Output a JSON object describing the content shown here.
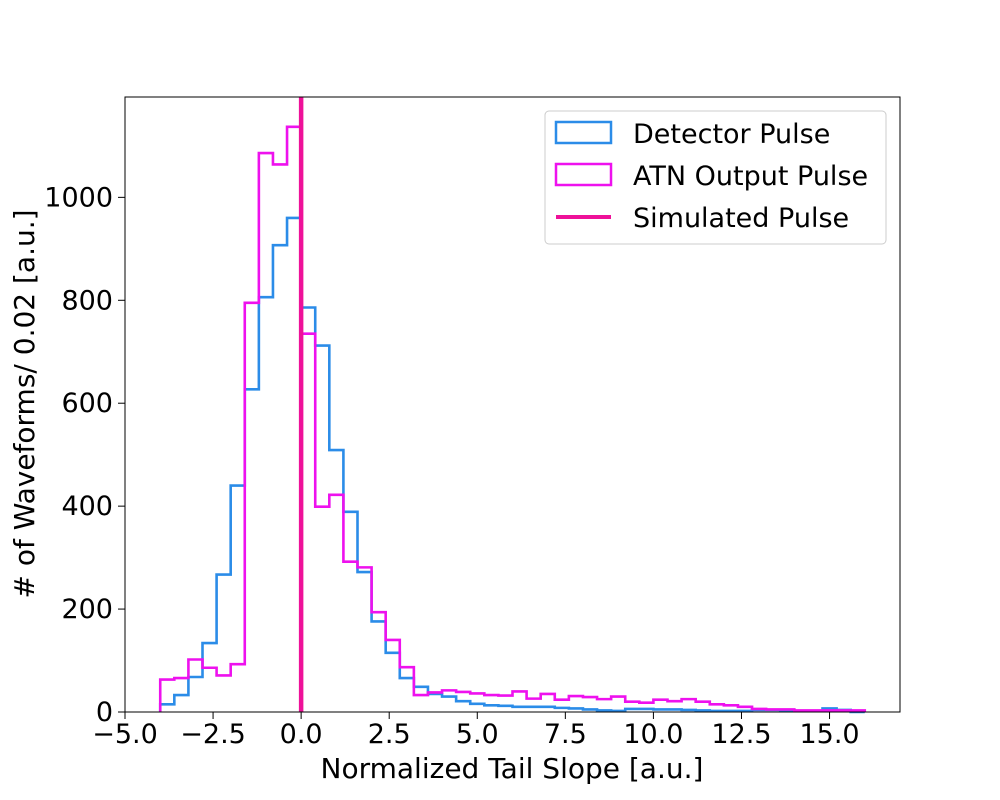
{
  "chart_data": {
    "type": "histogram",
    "title": "",
    "xlabel": "Normalized Tail Slope [a.u.]",
    "ylabel": "# of Waveforms/ 0.02 [a.u.]",
    "xlim": [
      -5.0,
      17.0
    ],
    "ylim": [
      0,
      1195
    ],
    "xticks": [
      -5.0,
      -2.5,
      0.0,
      2.5,
      5.0,
      7.5,
      10.0,
      12.5,
      15.0
    ],
    "xtick_labels": [
      "−5.0",
      "−2.5",
      "0.0",
      "2.5",
      "5.0",
      "7.5",
      "10.0",
      "12.5",
      "15.0"
    ],
    "yticks": [
      0,
      200,
      400,
      600,
      800,
      1000
    ],
    "ytick_labels": [
      "0",
      "200",
      "400",
      "600",
      "800",
      "1000"
    ],
    "grid": false,
    "legend_position": "top-right",
    "bin_edges": [
      -4.0,
      -3.6,
      -3.2,
      -2.8,
      -2.4,
      -2.0,
      -1.6,
      -1.2,
      -0.8,
      -0.4,
      0.0,
      0.4,
      0.8,
      1.2,
      1.6,
      2.0,
      2.4,
      2.8,
      3.2,
      3.6,
      4.0,
      4.4,
      4.8,
      5.2,
      5.6,
      6.0,
      6.4,
      6.8,
      7.2,
      7.6,
      8.0,
      8.4,
      8.8,
      9.2,
      9.6,
      10.0,
      10.4,
      10.8,
      11.2,
      11.6,
      12.0,
      12.4,
      12.8,
      13.2,
      13.6,
      14.0,
      14.4,
      14.8,
      15.2,
      15.6,
      16.0
    ],
    "series": [
      {
        "name": "Detector Pulse",
        "kind": "step-histogram",
        "color": "#2b8ce8",
        "values": [
          15,
          33,
          68,
          134,
          267,
          440,
          627,
          806,
          907,
          960,
          786,
          712,
          509,
          389,
          272,
          176,
          115,
          66,
          49,
          35,
          30,
          21,
          16,
          13,
          12,
          10,
          10,
          10,
          8,
          7,
          5,
          3,
          2,
          6,
          6,
          5,
          5,
          4,
          3,
          2,
          2,
          2,
          4,
          4,
          3,
          2,
          2,
          7,
          4,
          0
        ]
      },
      {
        "name": "ATN Output Pulse",
        "kind": "step-histogram",
        "color": "#ee11ee",
        "values": [
          63,
          66,
          102,
          86,
          71,
          93,
          795,
          1086,
          1064,
          1137,
          735,
          399,
          422,
          292,
          281,
          194,
          140,
          87,
          33,
          38,
          42,
          39,
          36,
          33,
          32,
          40,
          26,
          35,
          24,
          31,
          29,
          25,
          30,
          20,
          18,
          24,
          21,
          25,
          20,
          15,
          13,
          10,
          6,
          5,
          5,
          3,
          3,
          3,
          3,
          3
        ]
      },
      {
        "name": "Simulated Pulse",
        "kind": "vertical-line",
        "color": "#ee1199",
        "x": 0.0
      }
    ]
  }
}
